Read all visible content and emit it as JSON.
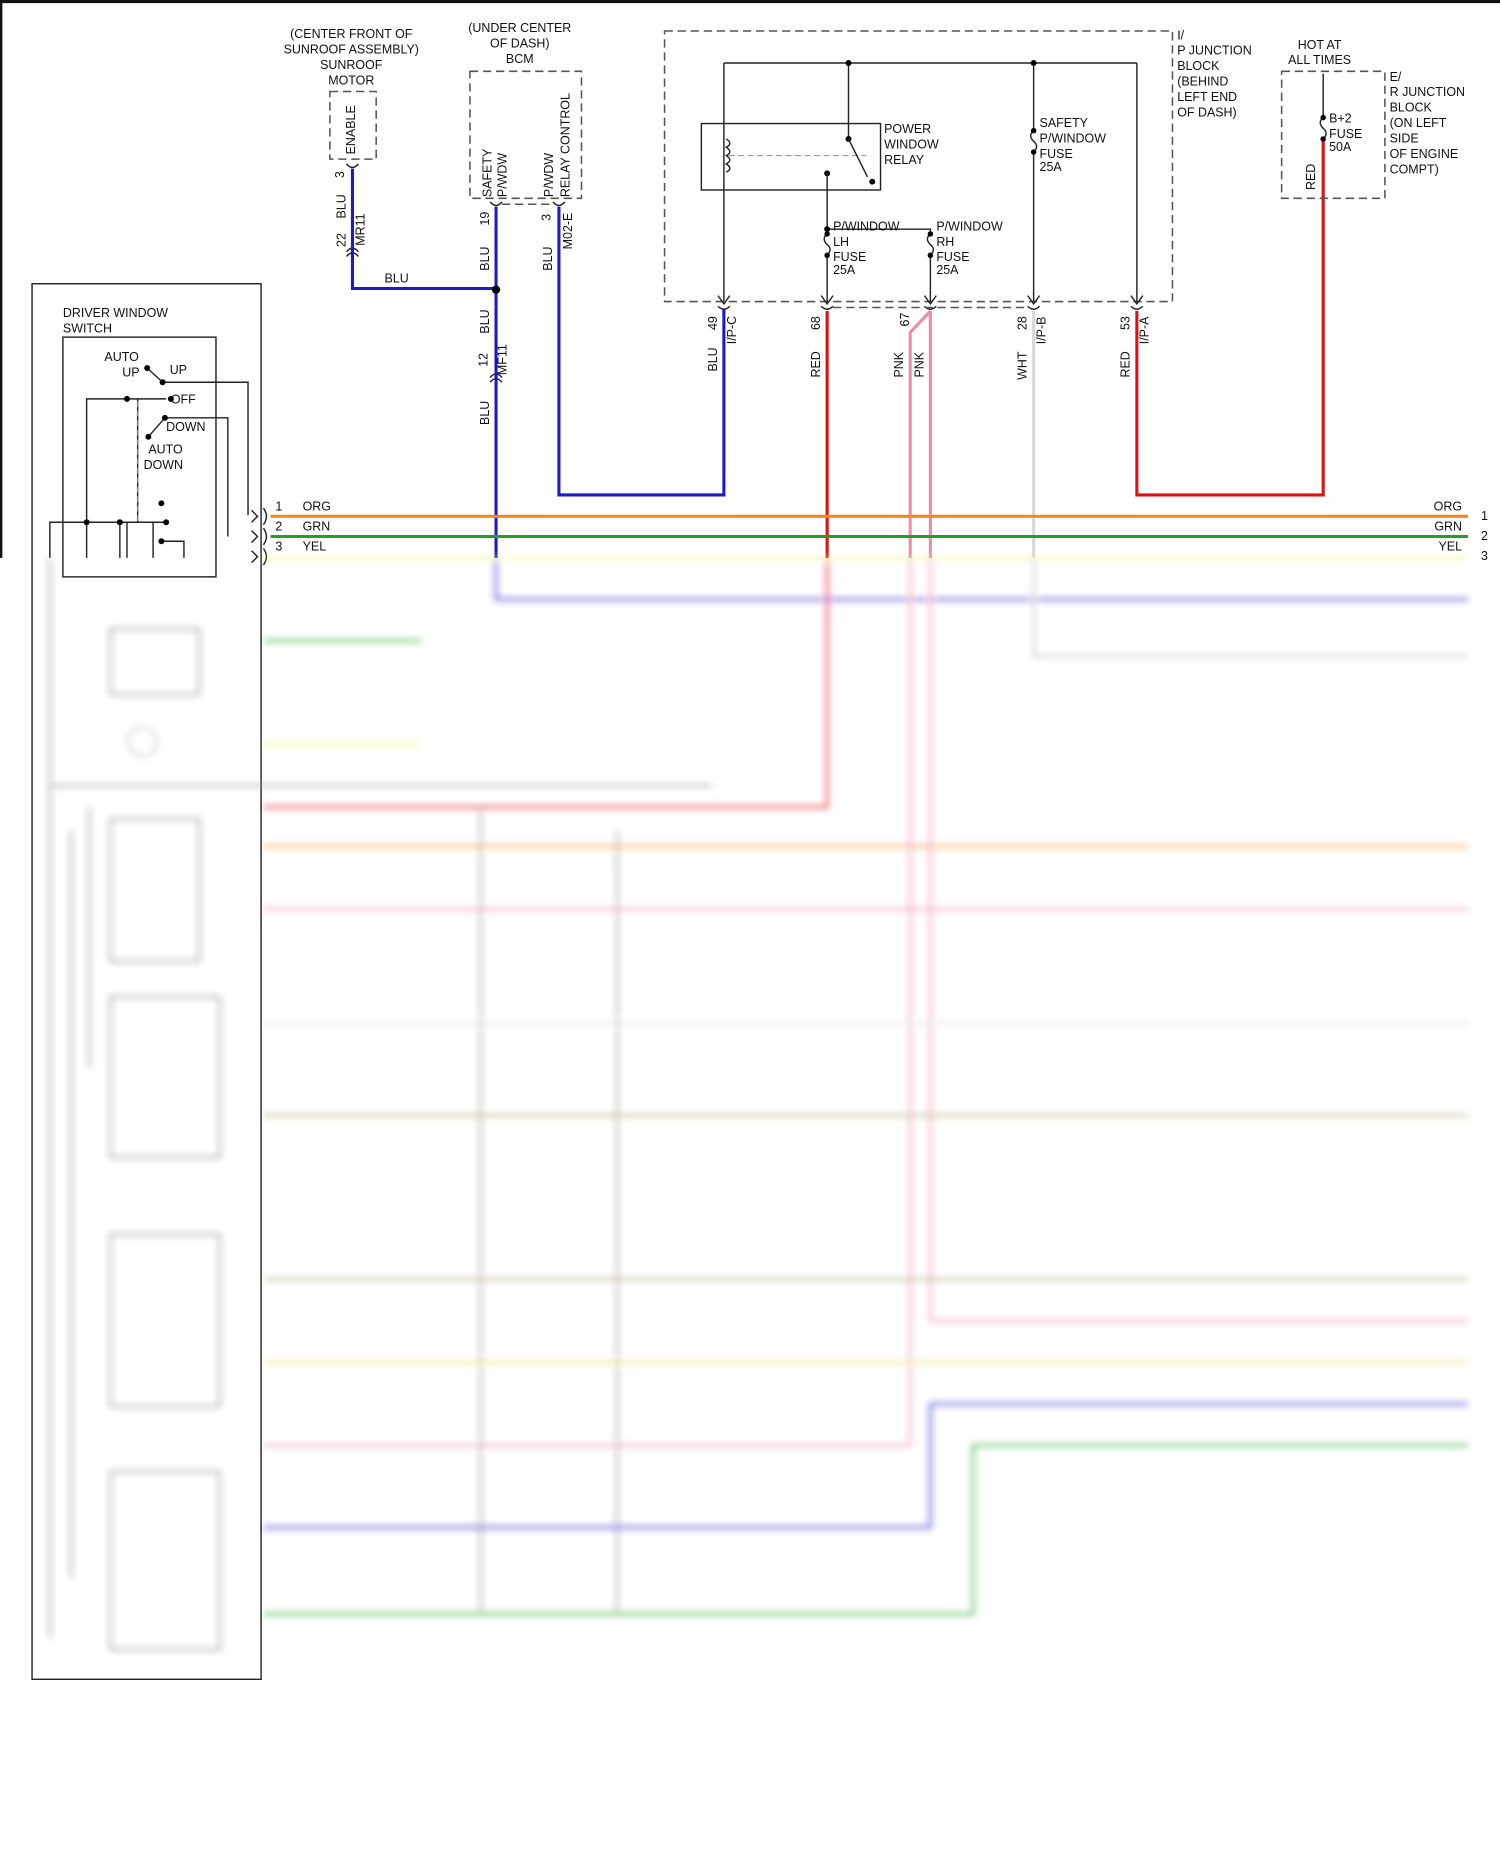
{
  "wire_colors": {
    "BLU": "#1a1acc",
    "RED": "#e01010",
    "PNK": "#f08aa8",
    "WHT": "#d8d8d8",
    "ORG": "#f08a1e",
    "GRN": "#22a022",
    "YEL": "#f4f47a"
  },
  "sunroof_motor": {
    "label_lines": [
      "(CENTER FRONT OF",
      "SUNROOF ASSEMBLY)",
      "SUNROOF",
      "MOTOR"
    ],
    "pin_name": "ENABLE",
    "pin": "3",
    "wire": "BLU",
    "inline_pin": "22",
    "inline_connector": "MR11",
    "run_label": "BLU"
  },
  "bcm": {
    "label_lines": [
      "(UNDER CENTER",
      "OF DASH)",
      "BCM"
    ],
    "pin_a_lines": [
      "SAFETY",
      "P/WDW"
    ],
    "pin_a": "19",
    "pin_a_wire": "BLU",
    "pin_b_lines": [
      "P/WDW",
      "RELAY CONTROL"
    ],
    "pin_b": "3",
    "pin_b_connector": "M02-E",
    "pin_b_wire": "BLU",
    "splice_wire_below": "BLU",
    "inline_pin": "12",
    "inline_connector": "MF11",
    "wire_after": "BLU"
  },
  "ip_junction_block": {
    "label_lines": [
      "I/",
      "P JUNCTION",
      "BLOCK",
      "(BEHIND",
      "LEFT END",
      "OF DASH)"
    ],
    "relay_lines": [
      "POWER",
      "WINDOW",
      "RELAY"
    ],
    "fuse_lh_lines": [
      "P/WINDOW",
      "LH",
      "FUSE",
      "25A"
    ],
    "fuse_rh_lines": [
      "P/WINDOW",
      "RH",
      "FUSE",
      "25A"
    ],
    "fuse_safety_lines": [
      "SAFETY",
      "P/WINDOW",
      "FUSE",
      "25A"
    ],
    "terminals": [
      {
        "pin": "49",
        "connector": "I/P-C",
        "wire": "BLU"
      },
      {
        "pin": "68",
        "connector": "",
        "wire": "RED"
      },
      {
        "pin": "67",
        "connector": "",
        "wire": "PNK",
        "wire2": "PNK"
      },
      {
        "pin": "28",
        "connector": "I/P-B",
        "wire": "WHT"
      },
      {
        "pin": "53",
        "connector": "I/P-A",
        "wire": "RED"
      }
    ]
  },
  "er_junction_block": {
    "header_lines": [
      "HOT AT",
      "ALL TIMES"
    ],
    "label_lines": [
      "E/",
      "R JUNCTION",
      "BLOCK",
      "(ON LEFT",
      "SIDE",
      "OF ENGINE",
      "COMPT)"
    ],
    "fuse_lines": [
      "B+2",
      "FUSE",
      "50A"
    ],
    "wire": "RED"
  },
  "driver_window_switch": {
    "label_lines": [
      "DRIVER WINDOW",
      "SWITCH"
    ],
    "positions": {
      "auto_up_lines": [
        "AUTO",
        "UP"
      ],
      "up": "UP",
      "off": "OFF",
      "down": "DOWN",
      "auto_down_lines": [
        "AUTO",
        "DOWN"
      ]
    },
    "pins": [
      {
        "pin": "1",
        "wire": "ORG",
        "right_label": "ORG",
        "right_pin": "1"
      },
      {
        "pin": "2",
        "wire": "GRN",
        "right_label": "GRN",
        "right_pin": "2"
      },
      {
        "pin": "3",
        "wire": "YEL",
        "right_label": "YEL",
        "right_pin": "3"
      }
    ]
  },
  "blurred_region": true
}
